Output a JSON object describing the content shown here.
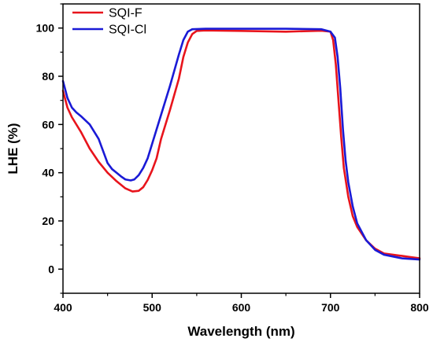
{
  "chart_data": {
    "type": "line",
    "xlabel": "Wavelength (nm)",
    "ylabel": "LHE (%)",
    "xlim": [
      400,
      800
    ],
    "ylim": [
      -10,
      110
    ],
    "xticks": [
      400,
      500,
      600,
      700,
      800
    ],
    "yticks": [
      0,
      20,
      40,
      60,
      80,
      100
    ],
    "grid": false,
    "legend_position": "top-left",
    "series": [
      {
        "name": "SQI-F",
        "color": "#e8141c",
        "points": [
          [
            400,
            74
          ],
          [
            405,
            67
          ],
          [
            410,
            63
          ],
          [
            420,
            57
          ],
          [
            430,
            50
          ],
          [
            440,
            44.5
          ],
          [
            450,
            40
          ],
          [
            460,
            36.5
          ],
          [
            470,
            33.5
          ],
          [
            478,
            32.2
          ],
          [
            485,
            32.5
          ],
          [
            490,
            34
          ],
          [
            495,
            37
          ],
          [
            500,
            41
          ],
          [
            505,
            46
          ],
          [
            510,
            54
          ],
          [
            520,
            66
          ],
          [
            530,
            79
          ],
          [
            535,
            88
          ],
          [
            540,
            94
          ],
          [
            545,
            97.5
          ],
          [
            550,
            98.8
          ],
          [
            560,
            99
          ],
          [
            600,
            98.8
          ],
          [
            650,
            98.5
          ],
          [
            690,
            98.9
          ],
          [
            700,
            98.5
          ],
          [
            703,
            95
          ],
          [
            706,
            85
          ],
          [
            709,
            70
          ],
          [
            712,
            55
          ],
          [
            715,
            42
          ],
          [
            720,
            30
          ],
          [
            725,
            22
          ],
          [
            730,
            17.5
          ],
          [
            740,
            12
          ],
          [
            750,
            8.5
          ],
          [
            760,
            6.5
          ],
          [
            780,
            5.5
          ],
          [
            790,
            5
          ],
          [
            800,
            4.5
          ]
        ]
      },
      {
        "name": "SQI-Cl",
        "color": "#1a1ad6",
        "points": [
          [
            400,
            78
          ],
          [
            405,
            71
          ],
          [
            410,
            67
          ],
          [
            415,
            65
          ],
          [
            420,
            63.5
          ],
          [
            430,
            60
          ],
          [
            440,
            54
          ],
          [
            445,
            49
          ],
          [
            450,
            44
          ],
          [
            455,
            41.5
          ],
          [
            460,
            40
          ],
          [
            465,
            38.5
          ],
          [
            470,
            37.2
          ],
          [
            476,
            36.8
          ],
          [
            480,
            37.2
          ],
          [
            485,
            39
          ],
          [
            490,
            42
          ],
          [
            495,
            46
          ],
          [
            500,
            52
          ],
          [
            510,
            64
          ],
          [
            520,
            76
          ],
          [
            530,
            89
          ],
          [
            535,
            95
          ],
          [
            540,
            98.5
          ],
          [
            545,
            99.5
          ],
          [
            560,
            99.7
          ],
          [
            650,
            99.7
          ],
          [
            690,
            99.5
          ],
          [
            700,
            98.5
          ],
          [
            705,
            96
          ],
          [
            708,
            88
          ],
          [
            711,
            75
          ],
          [
            714,
            58
          ],
          [
            717,
            45
          ],
          [
            720,
            36
          ],
          [
            725,
            26
          ],
          [
            730,
            19
          ],
          [
            740,
            12
          ],
          [
            750,
            8
          ],
          [
            760,
            6
          ],
          [
            780,
            4.5
          ],
          [
            800,
            4
          ]
        ]
      }
    ]
  }
}
